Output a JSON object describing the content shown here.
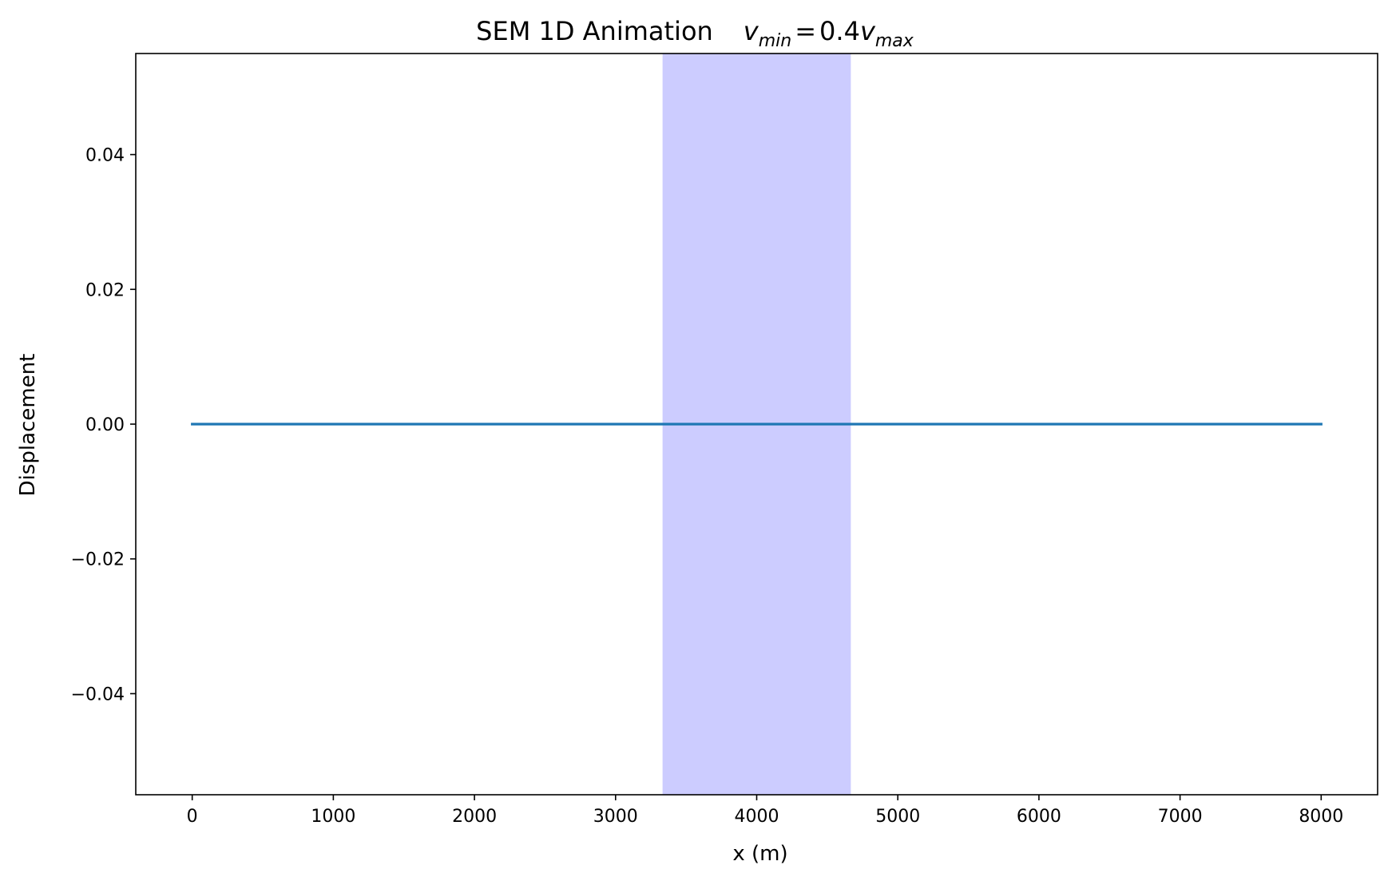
{
  "chart_data": {
    "type": "line",
    "title": "SEM 1D Animation",
    "title_math": {
      "var": "v",
      "sub_left": "min",
      "equals": "=",
      "coef": "0.4",
      "sub_right": "max"
    },
    "xlabel": "x (m)",
    "ylabel": "Displacement",
    "xlim": [
      -400,
      8400
    ],
    "ylim": [
      -0.055,
      0.055
    ],
    "xticks": [
      0,
      1000,
      2000,
      3000,
      4000,
      5000,
      6000,
      7000,
      8000
    ],
    "xtick_labels": [
      "0",
      "1000",
      "2000",
      "3000",
      "4000",
      "5000",
      "6000",
      "7000",
      "8000"
    ],
    "yticks": [
      -0.04,
      -0.02,
      0.0,
      0.02,
      0.04
    ],
    "ytick_labels": [
      "−0.04",
      "−0.02",
      "0.00",
      "0.02",
      "0.04"
    ],
    "grid": false,
    "shaded_region": {
      "x_start": 3333,
      "x_end": 4667,
      "color": "#ccccff"
    },
    "series": [
      {
        "color": "#1f77b4",
        "x": [
          0,
          8000
        ],
        "y": [
          0.0,
          0.0
        ]
      }
    ]
  }
}
